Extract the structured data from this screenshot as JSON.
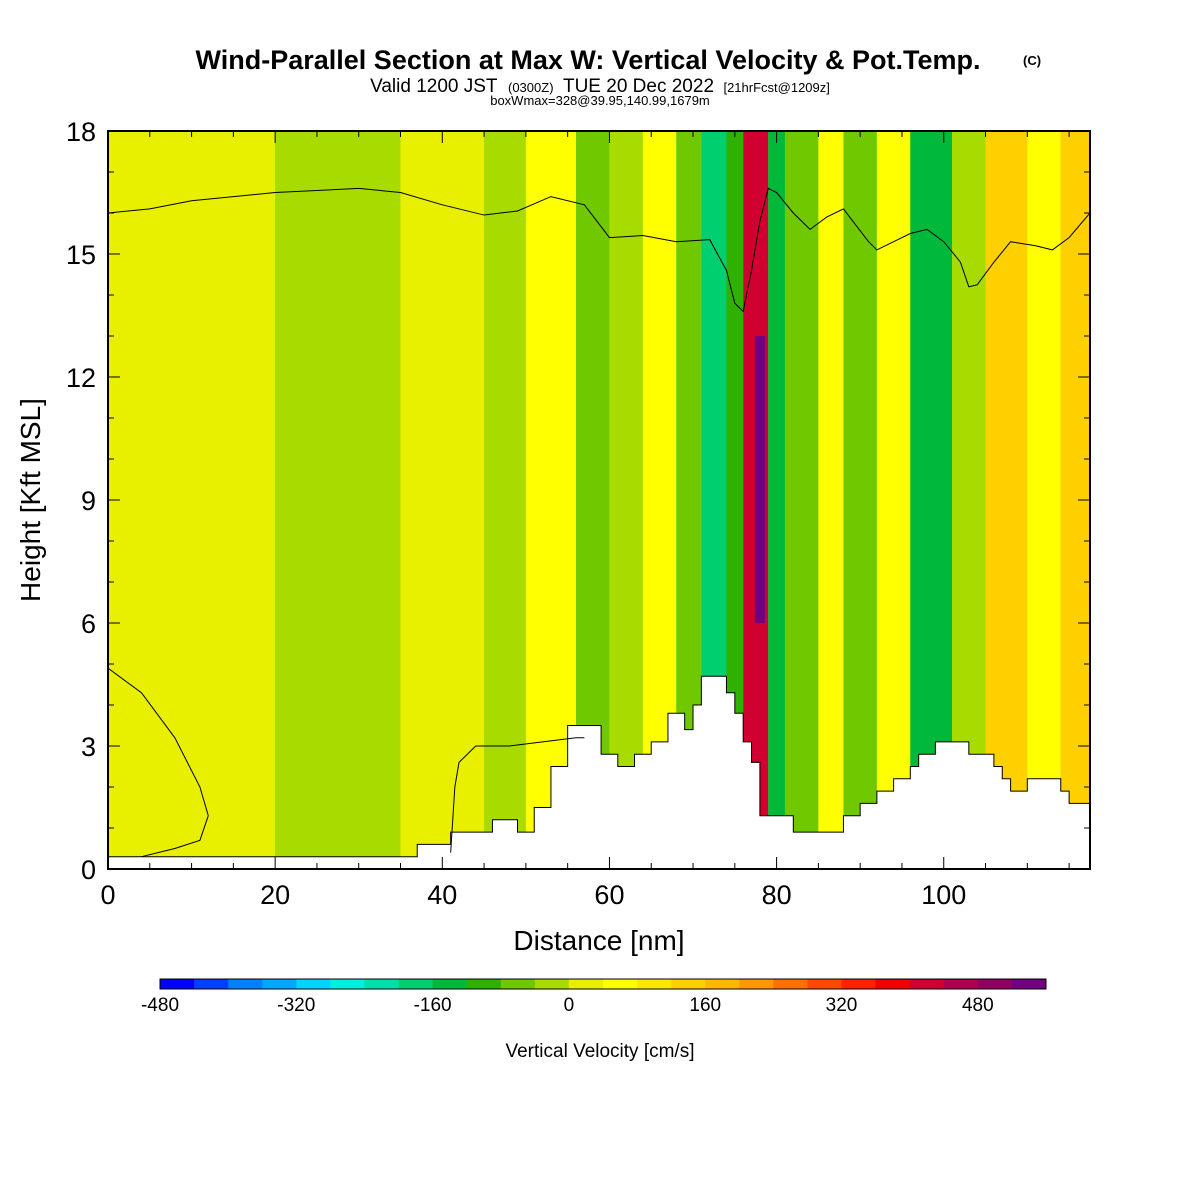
{
  "chart_data": {
    "type": "heatmap",
    "title": "Wind-Parallel Section at Max W: Vertical Velocity & Pot.Temp.",
    "title_mark": "(C)",
    "subtitle_main": "Valid 1200 JST",
    "subtitle_utc": "(0300Z)",
    "subtitle_date": "TUE 20 Dec 2022",
    "subtitle_fcst": "[21hrFcst@1209z]",
    "box_info": "boxWmax=328@39.95,140.99,1679m",
    "xlabel": "Distance [nm]",
    "ylabel": "Height [Kft MSL]",
    "xlim": [
      0,
      117.5
    ],
    "ylim": [
      0,
      18
    ],
    "x_ticks": [
      0,
      20,
      40,
      60,
      80,
      100
    ],
    "y_ticks": [
      0,
      3,
      6,
      9,
      12,
      15,
      18
    ],
    "colorbar": {
      "label": "Vertical Velocity [cm/s]",
      "min": -480,
      "step": 40,
      "tick_labels": [
        -480,
        -320,
        -160,
        0,
        160,
        320,
        480
      ],
      "colors": [
        "#0000ff",
        "#0040ff",
        "#0080ff",
        "#00a6ff",
        "#00d4ff",
        "#00f0e0",
        "#00e0a8",
        "#00cf70",
        "#00b83a",
        "#30b000",
        "#70c800",
        "#a8dc00",
        "#e8f000",
        "#ffff00",
        "#ffe800",
        "#ffd000",
        "#ffb800",
        "#ff9800",
        "#ff7000",
        "#ff4800",
        "#ff2000",
        "#f00000",
        "#d00030",
        "#b00050",
        "#900060",
        "#700080"
      ]
    },
    "vertical_velocity_columns": [
      {
        "x_range": [
          0,
          20
        ],
        "w": 0
      },
      {
        "x_range": [
          20,
          35
        ],
        "w": -40
      },
      {
        "x_range": [
          35,
          45
        ],
        "w": 20
      },
      {
        "x_range": [
          45,
          50
        ],
        "w": -40
      },
      {
        "x_range": [
          50,
          56
        ],
        "w": 60
      },
      {
        "x_range": [
          56,
          60
        ],
        "w": -80
      },
      {
        "x_range": [
          60,
          64
        ],
        "w": -40
      },
      {
        "x_range": [
          64,
          68
        ],
        "w": 40
      },
      {
        "x_range": [
          68,
          71
        ],
        "w": -80
      },
      {
        "x_range": [
          71,
          74
        ],
        "w": -200
      },
      {
        "x_range": [
          74,
          76
        ],
        "w": -120
      },
      {
        "x_range": [
          76,
          79
        ],
        "w": 400
      },
      {
        "x_range": [
          79,
          81
        ],
        "w": -160
      },
      {
        "x_range": [
          81,
          85
        ],
        "w": -80
      },
      {
        "x_range": [
          85,
          88
        ],
        "w": 60
      },
      {
        "x_range": [
          88,
          92
        ],
        "w": -80
      },
      {
        "x_range": [
          92,
          96
        ],
        "w": 40
      },
      {
        "x_range": [
          96,
          101
        ],
        "w": -160
      },
      {
        "x_range": [
          101,
          105
        ],
        "w": -40
      },
      {
        "x_range": [
          105,
          110
        ],
        "w": 120
      },
      {
        "x_range": [
          110,
          114
        ],
        "w": 40
      },
      {
        "x_range": [
          114,
          117.5
        ],
        "w": 140
      }
    ],
    "max_w": 560,
    "max_w_location": {
      "x": 78,
      "y_range": [
        6,
        13
      ]
    },
    "terrain": [
      [
        0,
        0.3
      ],
      [
        37,
        0.3
      ],
      [
        37,
        0.6
      ],
      [
        41,
        0.6
      ],
      [
        41,
        0.9
      ],
      [
        46,
        0.9
      ],
      [
        46,
        1.2
      ],
      [
        49,
        1.2
      ],
      [
        49,
        0.9
      ],
      [
        51,
        0.9
      ],
      [
        51,
        1.5
      ],
      [
        53,
        1.5
      ],
      [
        53,
        2.5
      ],
      [
        55,
        2.5
      ],
      [
        55,
        3.5
      ],
      [
        59,
        3.5
      ],
      [
        59,
        2.8
      ],
      [
        61,
        2.8
      ],
      [
        61,
        2.5
      ],
      [
        63,
        2.5
      ],
      [
        63,
        2.8
      ],
      [
        65,
        2.8
      ],
      [
        65,
        3.1
      ],
      [
        67,
        3.1
      ],
      [
        67,
        3.8
      ],
      [
        69,
        3.8
      ],
      [
        69,
        3.4
      ],
      [
        70,
        3.4
      ],
      [
        70,
        4.0
      ],
      [
        71,
        4.0
      ],
      [
        71,
        4.7
      ],
      [
        74,
        4.7
      ],
      [
        74,
        4.3
      ],
      [
        75,
        4.3
      ],
      [
        75,
        3.8
      ],
      [
        76,
        3.8
      ],
      [
        76,
        3.1
      ],
      [
        77,
        3.1
      ],
      [
        77,
        2.6
      ],
      [
        78,
        2.6
      ],
      [
        78,
        1.3
      ],
      [
        82,
        1.3
      ],
      [
        82,
        0.9
      ],
      [
        88,
        0.9
      ],
      [
        88,
        1.3
      ],
      [
        90,
        1.3
      ],
      [
        90,
        1.6
      ],
      [
        92,
        1.6
      ],
      [
        92,
        1.9
      ],
      [
        94,
        1.9
      ],
      [
        94,
        2.2
      ],
      [
        96,
        2.2
      ],
      [
        96,
        2.5
      ],
      [
        97,
        2.5
      ],
      [
        97,
        2.8
      ],
      [
        99,
        2.8
      ],
      [
        99,
        3.1
      ],
      [
        103,
        3.1
      ],
      [
        103,
        2.8
      ],
      [
        106,
        2.8
      ],
      [
        106,
        2.5
      ],
      [
        107,
        2.5
      ],
      [
        107,
        2.2
      ],
      [
        108,
        2.2
      ],
      [
        108,
        1.9
      ],
      [
        110,
        1.9
      ],
      [
        110,
        2.2
      ],
      [
        114,
        2.2
      ],
      [
        114,
        1.9
      ],
      [
        115,
        1.9
      ],
      [
        115,
        1.6
      ],
      [
        117.5,
        1.6
      ]
    ],
    "pot_temp_contour_upper": [
      [
        0,
        16.0
      ],
      [
        5,
        16.1
      ],
      [
        10,
        16.3
      ],
      [
        15,
        16.4
      ],
      [
        20,
        16.5
      ],
      [
        25,
        16.55
      ],
      [
        30,
        16.6
      ],
      [
        35,
        16.5
      ],
      [
        40,
        16.2
      ],
      [
        45,
        15.95
      ],
      [
        49,
        16.05
      ],
      [
        53,
        16.4
      ],
      [
        57,
        16.2
      ],
      [
        60,
        15.4
      ],
      [
        64,
        15.45
      ],
      [
        68,
        15.3
      ],
      [
        72,
        15.35
      ],
      [
        74,
        14.6
      ],
      [
        75,
        13.8
      ],
      [
        76,
        13.6
      ],
      [
        77,
        14.6
      ],
      [
        78,
        15.8
      ],
      [
        79,
        16.6
      ],
      [
        80,
        16.5
      ],
      [
        82,
        16.0
      ],
      [
        84,
        15.6
      ],
      [
        86,
        15.9
      ],
      [
        88,
        16.1
      ],
      [
        91,
        15.3
      ],
      [
        92,
        15.1
      ],
      [
        94,
        15.3
      ],
      [
        96,
        15.5
      ],
      [
        98,
        15.6
      ],
      [
        100,
        15.3
      ],
      [
        102,
        14.8
      ],
      [
        103,
        14.2
      ],
      [
        104,
        14.25
      ],
      [
        106,
        14.8
      ],
      [
        108,
        15.3
      ],
      [
        111,
        15.2
      ],
      [
        113,
        15.1
      ],
      [
        115,
        15.4
      ],
      [
        117.5,
        16.0
      ]
    ],
    "pot_temp_contour_lower": [
      [
        0,
        4.9
      ],
      [
        4,
        4.3
      ],
      [
        8,
        3.2
      ],
      [
        11,
        2.0
      ],
      [
        12,
        1.3
      ],
      [
        11,
        0.7
      ],
      [
        8,
        0.5
      ],
      [
        4,
        0.3
      ]
    ],
    "pot_temp_contour_mid": [
      [
        41,
        0.4
      ],
      [
        41.5,
        2.0
      ],
      [
        42,
        2.6
      ],
      [
        44,
        3.0
      ],
      [
        48,
        3.0
      ],
      [
        52,
        3.1
      ],
      [
        56,
        3.2
      ],
      [
        57,
        3.2
      ]
    ]
  }
}
